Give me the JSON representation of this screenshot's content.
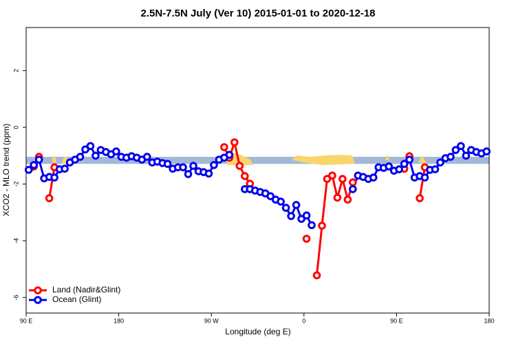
{
  "chart_data": {
    "type": "line",
    "title": "2.5N-7.5N July (Ver 10)   2015-01-01 to 2020-12-18",
    "x_label": "Longitude (deg E)",
    "y_label": "XCO2 - MLO trend (ppm)",
    "x": [
      92.5,
      97.5,
      102.5,
      107.5,
      112.5,
      117.5,
      122.5,
      127.5,
      132.5,
      137.5,
      142.5,
      147.5,
      152.5,
      157.5,
      162.5,
      167.5,
      172.5,
      177.5,
      182.5,
      187.5,
      192.5,
      197.5,
      202.5,
      207.5,
      212.5,
      217.5,
      222.5,
      227.5,
      232.5,
      237.5,
      242.5,
      247.5,
      252.5,
      257.5,
      262.5,
      267.5,
      272.5,
      277.5,
      282.5,
      287.5,
      292.5,
      297.5,
      302.5,
      307.5,
      312.5,
      317.5,
      322.5,
      327.5,
      332.5,
      337.5,
      342.5,
      347.5,
      352.5,
      357.5,
      362.5,
      367.5,
      372.5,
      377.5,
      382.5,
      387.5,
      392.5,
      397.5,
      402.5,
      407.5,
      412.5,
      417.5,
      422.5,
      427.5,
      432.5,
      437.5,
      442.5,
      447.5,
      452.5,
      457.5,
      462.5,
      467.5,
      472.5,
      477.5,
      482.5,
      487.5,
      492.5,
      497.5,
      502.5,
      507.5,
      512.5,
      517.5,
      522.5,
      527.5,
      532.5,
      537.5
    ],
    "series": [
      {
        "name": "Land (Nadir&Glint)",
        "color": "#ff0000",
        "values": [
          null,
          -1.38,
          -1.04,
          null,
          -2.5,
          -1.41,
          null,
          null,
          null,
          null,
          null,
          null,
          null,
          null,
          null,
          null,
          null,
          null,
          null,
          null,
          null,
          null,
          null,
          null,
          null,
          null,
          null,
          null,
          null,
          null,
          null,
          null,
          null,
          null,
          null,
          null,
          null,
          null,
          -0.7,
          -1.07,
          -0.53,
          -1.36,
          -1.72,
          -1.99,
          null,
          null,
          null,
          null,
          null,
          null,
          null,
          null,
          null,
          null,
          -3.93,
          null,
          -5.22,
          -3.47,
          -1.82,
          -1.7,
          -2.48,
          -1.82,
          -2.55,
          -1.94,
          null,
          null,
          null,
          null,
          null,
          null,
          null,
          null,
          null,
          -1.46,
          -1.02,
          null,
          -2.5,
          -1.41,
          null,
          null,
          null,
          null,
          null,
          null,
          null,
          null,
          null,
          null,
          null,
          null
        ]
      },
      {
        "name": "Ocean (Glint)",
        "color": "#0000ee",
        "values": [
          -1.5,
          -1.33,
          -1.14,
          -1.8,
          -1.75,
          -1.77,
          -1.48,
          -1.46,
          -1.24,
          -1.14,
          -1.04,
          -0.78,
          -0.66,
          -1.0,
          -0.8,
          -0.87,
          -0.95,
          -0.85,
          -1.04,
          -1.07,
          -1.02,
          -1.07,
          -1.14,
          -1.04,
          -1.24,
          -1.21,
          -1.26,
          -1.29,
          -1.46,
          -1.41,
          -1.41,
          -1.65,
          -1.36,
          -1.55,
          -1.58,
          -1.63,
          -1.33,
          -1.14,
          -1.07,
          -0.97,
          null,
          null,
          -2.18,
          -2.18,
          -2.23,
          -2.28,
          -2.33,
          -2.43,
          -2.55,
          -2.62,
          -2.84,
          -3.13,
          -2.74,
          -3.23,
          -3.11,
          -3.45,
          null,
          null,
          null,
          null,
          null,
          null,
          null,
          -2.18,
          -1.7,
          -1.75,
          -1.82,
          -1.77,
          -1.41,
          -1.43,
          -1.38,
          -1.53,
          -1.48,
          -1.29,
          -1.14,
          -1.77,
          -1.72,
          -1.77,
          -1.5,
          -1.48,
          -1.24,
          -1.09,
          -1.04,
          -0.8,
          -0.66,
          -1.0,
          -0.8,
          -0.87,
          -0.92,
          -0.85
        ]
      }
    ],
    "band": [
      -1.29,
      -1.04
    ],
    "band_color": "#a3b8d8",
    "xlim": [
      90,
      540
    ],
    "xticks": [
      {
        "value": 90,
        "label": "90 E"
      },
      180,
      {
        "value": 270,
        "label": "90 W"
      },
      {
        "value": 360,
        "label": "0"
      },
      {
        "value": 450,
        "label": "90 E"
      },
      {
        "value": 540,
        "label": "180"
      }
    ],
    "ylim": [
      -6.55,
      3.52
    ],
    "yticks": [
      -6,
      -4,
      -2,
      0,
      2
    ],
    "legend": "bottom-left"
  }
}
